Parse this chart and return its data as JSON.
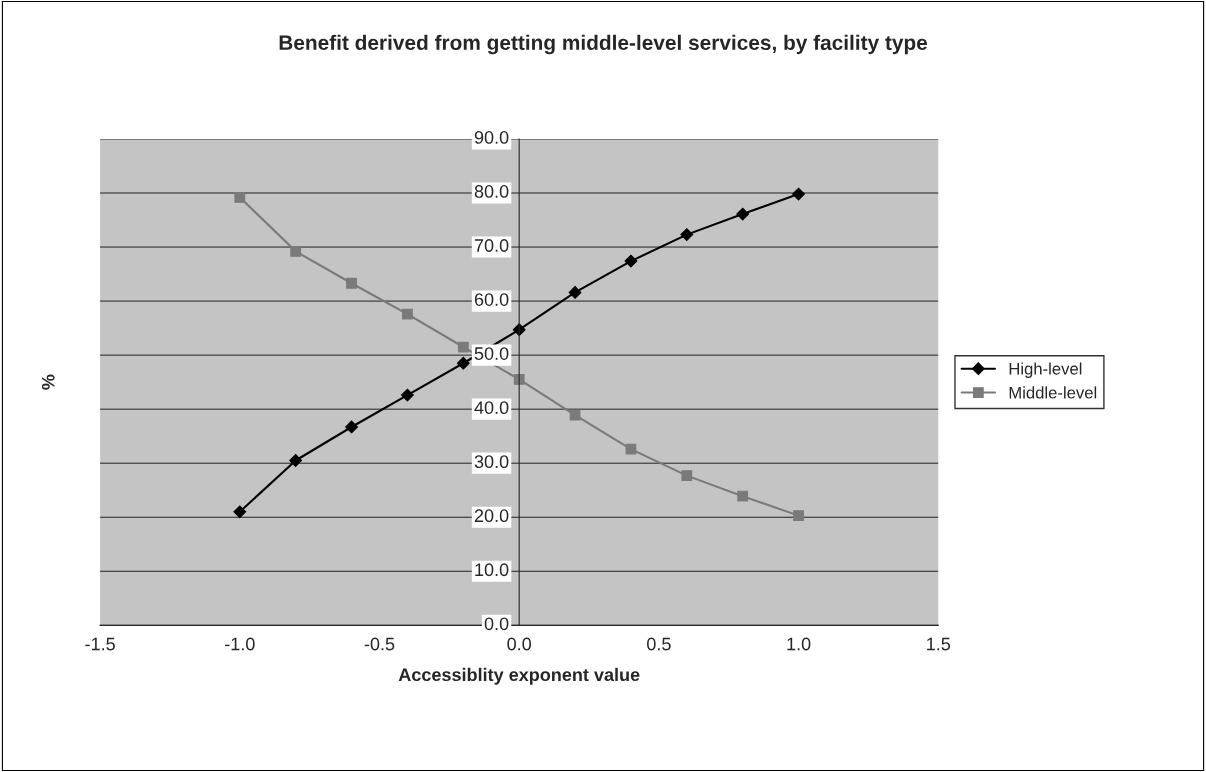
{
  "chart_data": {
    "type": "line",
    "title": "Benefit derived from getting middle-level services, by facility type",
    "xlabel": "Accessiblity exponent value",
    "ylabel": "%",
    "x": [
      -1.0,
      -0.8,
      -0.6,
      -0.4,
      -0.2,
      0.0,
      0.2,
      0.4,
      0.6,
      0.8,
      1.0
    ],
    "series": [
      {
        "name": "High-level",
        "color": "#000000",
        "marker": "diamond",
        "values": [
          21.0,
          30.5,
          36.7,
          42.6,
          48.5,
          54.7,
          61.6,
          67.4,
          72.3,
          76.1,
          79.8
        ]
      },
      {
        "name": "Middle-level",
        "color": "#7a7a7a",
        "marker": "square",
        "values": [
          79.2,
          69.2,
          63.3,
          57.6,
          51.5,
          45.5,
          38.9,
          32.6,
          27.7,
          23.9,
          20.3
        ]
      }
    ],
    "xlim": [
      -1.5,
      1.5
    ],
    "xticks": [
      {
        "value": -1.5,
        "label": "-1.5"
      },
      {
        "value": -1.0,
        "label": "-1.0"
      },
      {
        "value": -0.5,
        "label": "-0.5"
      },
      {
        "value": 0.0,
        "label": "0.0"
      },
      {
        "value": 0.5,
        "label": "0.5"
      },
      {
        "value": 1.0,
        "label": "1.0"
      },
      {
        "value": 1.5,
        "label": "1.5"
      }
    ],
    "ylim": [
      0,
      90
    ],
    "yticks": [
      {
        "value": 0,
        "label": "0.0"
      },
      {
        "value": 10,
        "label": "10.0"
      },
      {
        "value": 20,
        "label": "20.0"
      },
      {
        "value": 30,
        "label": "30.0"
      },
      {
        "value": 40,
        "label": "40.0"
      },
      {
        "value": 50,
        "label": "50.0"
      },
      {
        "value": 60,
        "label": "60.0"
      },
      {
        "value": 70,
        "label": "70.0"
      },
      {
        "value": 80,
        "label": "80.0"
      },
      {
        "value": 90,
        "label": "90.0"
      }
    ],
    "grid": "y",
    "legend": "right",
    "line_style": "solid"
  }
}
